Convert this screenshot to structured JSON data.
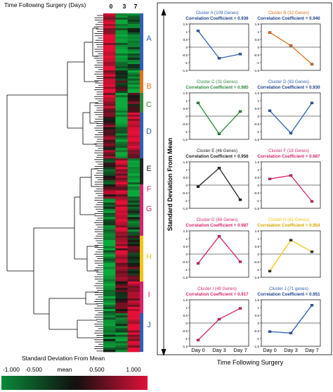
{
  "heatmap": {
    "header": "Time Following Surgery (Days)",
    "day_labels": [
      "0",
      "3",
      "7"
    ],
    "clusters": [
      {
        "letter": "A",
        "color": "#2f5fb3"
      },
      {
        "letter": "B",
        "color": "#e0731e"
      },
      {
        "letter": "C",
        "color": "#2e8b3a"
      },
      {
        "letter": "D",
        "color": "#2f5fb3"
      },
      {
        "letter": "E",
        "color": "#222222"
      },
      {
        "letter": "F",
        "color": "#d6246e"
      },
      {
        "letter": "G",
        "color": "#d6246e"
      },
      {
        "letter": "H",
        "color": "#f2c515"
      },
      {
        "letter": "I",
        "color": "#d6246e"
      },
      {
        "letter": "J",
        "color": "#2f5fb3"
      }
    ]
  },
  "colorbar": {
    "title": "Standard Deviation From Mean",
    "labels": [
      "-1.000",
      "-0.500",
      "mean",
      "0.500",
      "1.000"
    ]
  },
  "panel": {
    "ylabel": "Standard Deviation From Mean",
    "xlabel": "Time Following Surgery"
  },
  "chart_data": [
    {
      "type": "line",
      "title": "Cluster A (109 Genes)",
      "subtitle": "Correlation Coefficient = 0.936",
      "categories": [
        "Day 0",
        "Day 3",
        "Day 7"
      ],
      "values": [
        1.05,
        -0.72,
        -0.45
      ],
      "ylim": [
        -1.5,
        1.5
      ],
      "color": "#2f5fb3",
      "subtitle_color": "#1a3f8a"
    },
    {
      "type": "line",
      "title": "Cluster B (32 Genes)",
      "subtitle": "Correlation Coefficient = 0.940",
      "categories": [
        "Day 0",
        "Day 3",
        "Day 7"
      ],
      "values": [
        0.95,
        0.1,
        -1.1
      ],
      "ylim": [
        -1.5,
        1.5
      ],
      "color": "#e0731e",
      "subtitle_color": "#1a3f8a"
    },
    {
      "type": "line",
      "title": "Cluster C (31 Genes)",
      "subtitle": "Correlation Coefficient = 0.985",
      "categories": [
        "Day 0",
        "Day 3",
        "Day 7"
      ],
      "values": [
        0.85,
        -1.15,
        0.3
      ],
      "ylim": [
        -1.5,
        1.5
      ],
      "color": "#2e8b3a",
      "subtitle_color": "#2e8b3a"
    },
    {
      "type": "line",
      "title": "Cluster D (83 Genes)",
      "subtitle": "Correlation Coefficient = 0.930",
      "categories": [
        "Day 0",
        "Day 3",
        "Day 7"
      ],
      "values": [
        0.35,
        -1.1,
        0.85
      ],
      "ylim": [
        -1.5,
        1.5
      ],
      "color": "#2f5fb3",
      "subtitle_color": "#1a3f8a"
    },
    {
      "type": "line",
      "title": "Cluster E (46 Genes)",
      "subtitle": "Correlation Coefficient = 0.956",
      "categories": [
        "Day 0",
        "Day 3",
        "Day 7"
      ],
      "values": [
        -0.1,
        1.1,
        -0.95
      ],
      "ylim": [
        -1.5,
        1.5
      ],
      "color": "#222222",
      "subtitle_color": "#222222"
    },
    {
      "type": "line",
      "title": "Cluster F (18 Genes)",
      "subtitle": "Correlation Coefficient = 0.987",
      "categories": [
        "Day 0",
        "Day 3",
        "Day 7"
      ],
      "values": [
        0.4,
        0.62,
        -1.05
      ],
      "ylim": [
        -1.5,
        1.5
      ],
      "color": "#d6246e",
      "subtitle_color": "#d6246e"
    },
    {
      "type": "line",
      "title": "Cluster G (68 Genes)",
      "subtitle": "Correlation Coefficient = 0.987",
      "categories": [
        "Day 0",
        "Day 3",
        "Day 7"
      ],
      "values": [
        -0.6,
        1.15,
        -0.5
      ],
      "ylim": [
        -1.5,
        1.5
      ],
      "color": "#d6246e",
      "subtitle_color": "#d6246e"
    },
    {
      "type": "line",
      "title": "Cluster H (61 Genes)",
      "subtitle": "Correlation Coefficient = 0.954",
      "categories": [
        "Day 0",
        "Day 3",
        "Day 7"
      ],
      "values": [
        -1.1,
        0.9,
        0.15
      ],
      "ylim": [
        -1.5,
        1.5
      ],
      "color": "#f2c515",
      "subtitle_color": "#d4a800"
    },
    {
      "type": "line",
      "title": "Cluster I (49 Genes)",
      "subtitle": "Correlation Coefficient = 0.917",
      "categories": [
        "Day 0",
        "Day 3",
        "Day 7"
      ],
      "values": [
        -1.1,
        0.25,
        0.95
      ],
      "ylim": [
        -1.5,
        1.5
      ],
      "color": "#d6246e",
      "subtitle_color": "#d6246e"
    },
    {
      "type": "line",
      "title": "Cluster J (71 genes)",
      "subtitle": "Correlation Coefficient = 0.951",
      "categories": [
        "Day 0",
        "Day 3",
        "Day 7"
      ],
      "values": [
        -0.55,
        -0.65,
        1.15
      ],
      "ylim": [
        -1.5,
        1.5
      ],
      "color": "#2f5fb3",
      "subtitle_color": "#1a3f8a"
    }
  ]
}
